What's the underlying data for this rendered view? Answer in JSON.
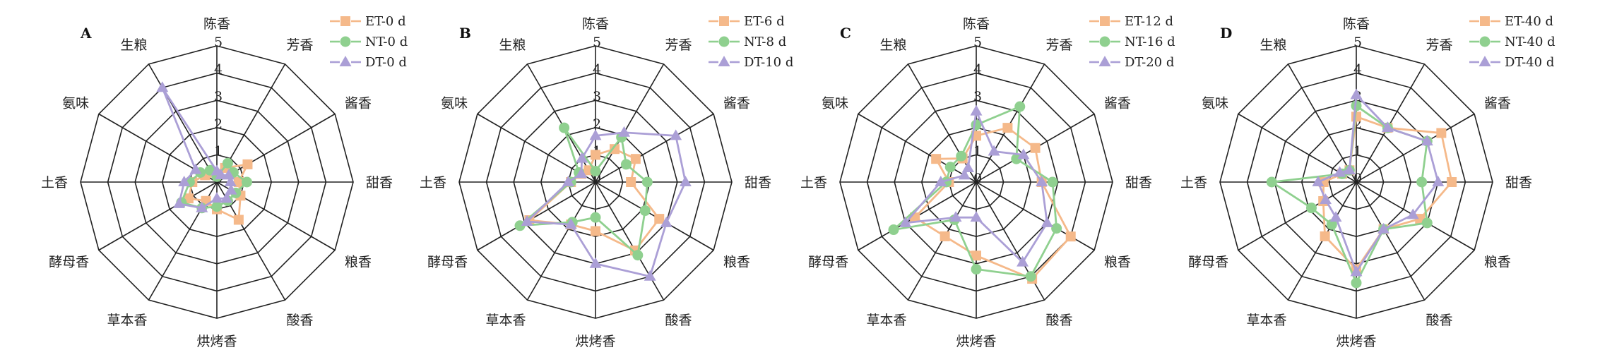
{
  "figure": {
    "title": ""
  },
  "colors": {
    "ET": "#f5b98a",
    "NT": "#8fd08f",
    "DT": "#ab9fd6",
    "grid": "#222222"
  },
  "markers": {
    "ET": "square",
    "NT": "circle",
    "DT": "triangle"
  },
  "chart_data": [
    {
      "type": "radar",
      "panel": "A",
      "axes": [
        "陈香",
        "芳香",
        "酱香",
        "甜香",
        "粮香",
        "酸香",
        "烘烤香",
        "草本香",
        "酵母香",
        "土香",
        "氨味",
        "生粮"
      ],
      "r_ticks": [
        "0",
        "1",
        "2",
        "3",
        "4",
        "5"
      ],
      "rlim": [
        0,
        5
      ],
      "legend_position": "top-right",
      "series": [
        {
          "name": "ET-0 d",
          "key": "ET",
          "values": [
            0.3,
            0.6,
            1.3,
            0.8,
            1.0,
            1.6,
            1.0,
            0.8,
            1.2,
            0.9,
            0.5,
            0.4
          ]
        },
        {
          "name": "NT-0 d",
          "key": "NT",
          "values": [
            0.2,
            0.8,
            0.7,
            1.1,
            0.8,
            0.8,
            0.9,
            1.1,
            1.5,
            1.0,
            0.7,
            0.5
          ]
        },
        {
          "name": "DT-0 d",
          "key": "DT",
          "values": [
            0.4,
            0.3,
            0.5,
            0.5,
            0.6,
            0.7,
            0.6,
            1.1,
            1.6,
            1.2,
            0.9,
            4.0
          ]
        }
      ]
    },
    {
      "type": "radar",
      "panel": "B",
      "axes": [
        "陈香",
        "芳香",
        "酱香",
        "甜香",
        "粮香",
        "酸香",
        "烘烤香",
        "草本香",
        "酵母香",
        "土香",
        "氨味",
        "生粮"
      ],
      "r_ticks": [
        "0",
        "1",
        "2",
        "3",
        "4",
        "5"
      ],
      "rlim": [
        0,
        5
      ],
      "legend_position": "top-right",
      "series": [
        {
          "name": "ET-6 d",
          "key": "ET",
          "values": [
            1.0,
            1.4,
            1.7,
            1.3,
            2.7,
            2.9,
            1.8,
            1.8,
            2.8,
            0.9,
            0.6,
            0.5
          ]
        },
        {
          "name": "NT-8 d",
          "key": "NT",
          "values": [
            0.4,
            1.9,
            1.3,
            1.9,
            2.1,
            3.1,
            1.3,
            1.7,
            3.2,
            0.9,
            0.7,
            2.3
          ]
        },
        {
          "name": "DT-10 d",
          "key": "DT",
          "values": [
            1.7,
            2.1,
            3.4,
            3.3,
            3.0,
            4.0,
            3.0,
            1.8,
            2.9,
            1.0,
            0.6,
            1.0
          ]
        }
      ]
    },
    {
      "type": "radar",
      "panel": "C",
      "axes": [
        "陈香",
        "芳香",
        "酱香",
        "甜香",
        "粮香",
        "酸香",
        "烘烤香",
        "草本香",
        "酵母香",
        "土香",
        "氨味",
        "生粮"
      ],
      "r_ticks": [
        "0",
        "1",
        "2",
        "3",
        "4",
        "5"
      ],
      "rlim": [
        0,
        5
      ],
      "legend_position": "top-right",
      "series": [
        {
          "name": "ET-12 d",
          "key": "ET",
          "values": [
            1.7,
            2.3,
            2.5,
            2.4,
            4.0,
            4.1,
            2.7,
            2.3,
            2.6,
            1.0,
            1.7,
            1.0
          ]
        },
        {
          "name": "NT-16 d",
          "key": "NT",
          "values": [
            2.1,
            3.2,
            1.7,
            2.8,
            3.4,
            4.0,
            3.2,
            1.6,
            3.5,
            1.1,
            1.1,
            1.1
          ]
        },
        {
          "name": "DT-20 d",
          "key": "DT",
          "values": [
            2.6,
            1.3,
            2.0,
            2.4,
            3.0,
            3.4,
            1.3,
            1.5,
            3.0,
            1.3,
            0.5,
            0.6
          ]
        }
      ]
    },
    {
      "type": "radar",
      "panel": "D",
      "axes": [
        "陈香",
        "芳香",
        "酱香",
        "甜香",
        "粮香",
        "酸香",
        "烘烤香",
        "草本香",
        "酵母香",
        "土香",
        "氨味",
        "生粮"
      ],
      "r_ticks": [
        "0",
        "1",
        "2",
        "3",
        "4",
        "5"
      ],
      "rlim": [
        0,
        5
      ],
      "legend_position": "top-right",
      "series": [
        {
          "name": "ET-40 d",
          "key": "ET",
          "values": [
            2.4,
            2.3,
            3.6,
            3.5,
            2.7,
            2.0,
            3.2,
            2.3,
            1.4,
            1.2,
            0.6,
            0.5
          ]
        },
        {
          "name": "NT-40 d",
          "key": "NT",
          "values": [
            2.8,
            2.3,
            3.0,
            2.4,
            3.0,
            2.0,
            3.7,
            1.8,
            1.9,
            3.1,
            0.6,
            0.5
          ]
        },
        {
          "name": "DT-40 d",
          "key": "DT",
          "values": [
            3.2,
            2.3,
            3.0,
            3.0,
            2.4,
            2.0,
            3.3,
            1.5,
            1.3,
            1.4,
            0.7,
            0.5
          ]
        }
      ]
    }
  ]
}
